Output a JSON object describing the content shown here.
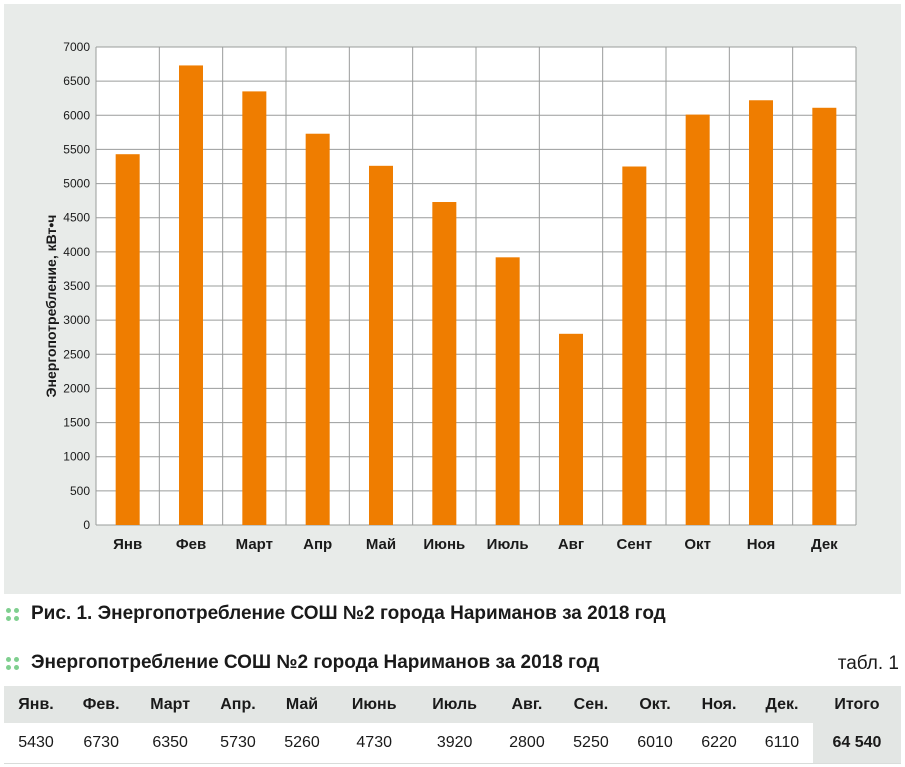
{
  "chart_data": {
    "type": "bar",
    "categories": [
      "Янв",
      "Фев",
      "Март",
      "Апр",
      "Май",
      "Июнь",
      "Июль",
      "Авг",
      "Сент",
      "Окт",
      "Ноя",
      "Дек"
    ],
    "values": [
      5430,
      6730,
      6350,
      5730,
      5260,
      4730,
      3920,
      2800,
      5250,
      6010,
      6220,
      6110
    ],
    "ylabel": "Энергопотребление, кВт•ч",
    "ylim": [
      0,
      7000
    ],
    "yticks": [
      0,
      500,
      1000,
      1500,
      2000,
      2500,
      3000,
      3500,
      4000,
      4500,
      5000,
      5500,
      6000,
      6500,
      7000
    ],
    "grid": true,
    "bar_color": "#ef7d00"
  },
  "figure_caption": {
    "prefix": "Рис. 1.",
    "text": "Энергопотребление СОШ №2 города Нариманов за 2018 год"
  },
  "table": {
    "title": "Энергопотребление СОШ №2 города Нариманов за 2018 год",
    "note": "табл. 1",
    "headers": [
      "Янв.",
      "Фев.",
      "Март",
      "Апр.",
      "Май",
      "Июнь",
      "Июль",
      "Авг.",
      "Сен.",
      "Окт.",
      "Ноя.",
      "Дек.",
      "Итого"
    ],
    "values": [
      "5430",
      "6730",
      "6350",
      "5730",
      "5260",
      "4730",
      "3920",
      "2800",
      "5250",
      "6010",
      "6220",
      "6110",
      "64 540"
    ]
  }
}
